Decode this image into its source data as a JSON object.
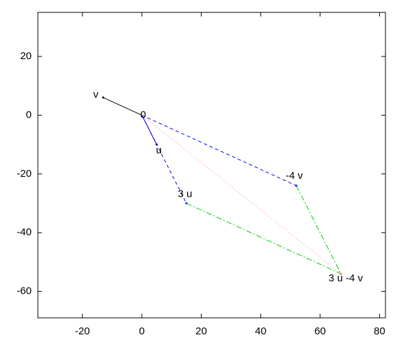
{
  "chart_data": {
    "type": "vector",
    "xlim": [
      -35,
      82
    ],
    "ylim": [
      -69,
      35
    ],
    "xticks": [
      -20,
      0,
      20,
      40,
      60,
      80
    ],
    "yticks": [
      -60,
      -40,
      -20,
      0,
      20
    ],
    "series": [
      {
        "color": "#000000",
        "dash": "solid",
        "x": [
          0,
          -13
        ],
        "y": [
          0,
          6
        ]
      },
      {
        "color": "#000080",
        "dash": "solid",
        "x": [
          0,
          5
        ],
        "y": [
          0,
          -10
        ]
      },
      {
        "color": "#0000ff",
        "dash": "dashed",
        "x": [
          0,
          15
        ],
        "y": [
          0,
          -30
        ]
      },
      {
        "color": "#0000ff",
        "dash": "dashed",
        "x": [
          0,
          52
        ],
        "y": [
          0,
          -24
        ]
      },
      {
        "color": "#00d000",
        "dash": "dashdot",
        "x": [
          15,
          67
        ],
        "y": [
          -30,
          -54
        ]
      },
      {
        "color": "#00d000",
        "dash": "dashdot",
        "x": [
          52,
          67
        ],
        "y": [
          -24,
          -54
        ]
      },
      {
        "color": "#ff8080",
        "dash": "dotted",
        "x": [
          0,
          67
        ],
        "y": [
          0,
          -54
        ]
      }
    ],
    "labels": [
      {
        "text": "v",
        "x": -13,
        "y": 6
      },
      {
        "text": "0",
        "x": 0,
        "y": 0
      },
      {
        "text": "u",
        "x": 5,
        "y": -10
      },
      {
        "text": "3 u",
        "x": 15,
        "y": -30
      },
      {
        "text": "-4 v",
        "x": 52,
        "y": -24
      },
      {
        "text": "3 u -4 v",
        "x": 67,
        "y": -54
      }
    ]
  }
}
